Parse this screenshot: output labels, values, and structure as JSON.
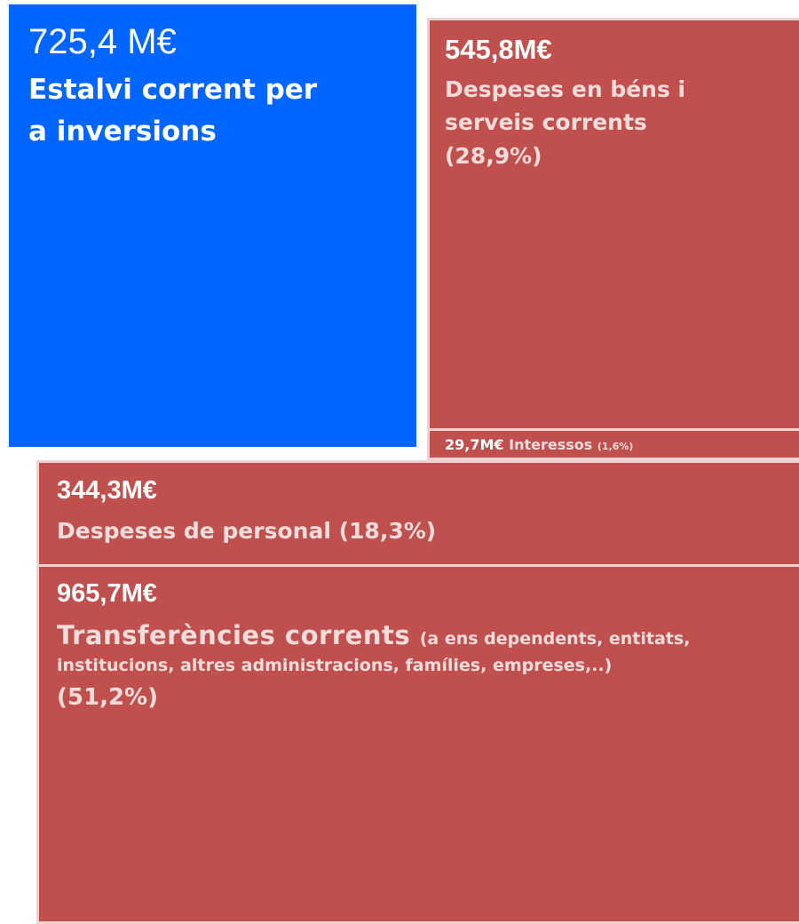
{
  "savings": {
    "value": "725,4 M€",
    "label_lines": [
      "Estalvi corrent per",
      "a inversions"
    ]
  },
  "goods": {
    "value": "545,8M€",
    "label_lines": [
      "Despeses en béns i",
      "serveis corrents"
    ],
    "share": "(28,9%)"
  },
  "interest": {
    "value": "29,7M€",
    "label": "Interessos",
    "share": "(1,6%)"
  },
  "personnel": {
    "value": "344,3M€",
    "label": "Despeses de personal",
    "share": "(18,3%)"
  },
  "transfers": {
    "value": "965,7M€",
    "label": "Transferències corrents",
    "detail_lines": [
      "(a ens dependents, entitats,",
      "institucions, altres administracions, famílies, empreses,..)"
    ],
    "share": "(51,2%)"
  }
}
